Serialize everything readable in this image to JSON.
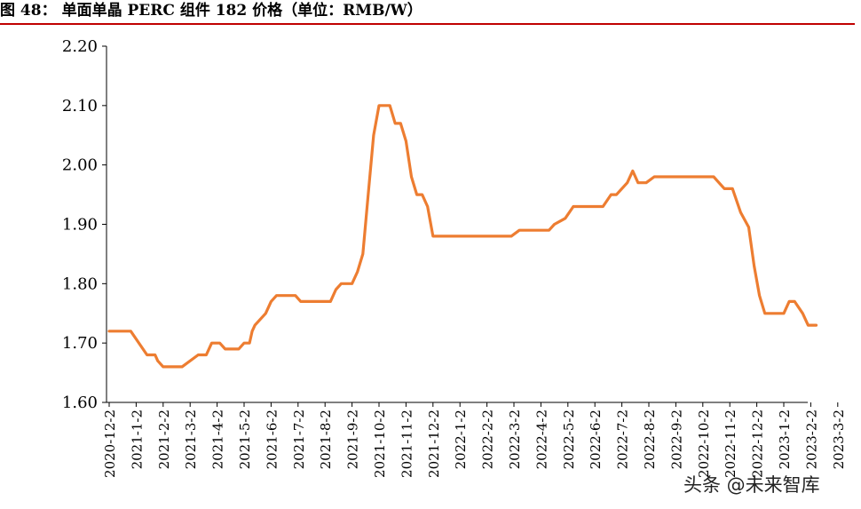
{
  "title": {
    "prefix": "图 48：",
    "text": "单面单晶 PERC 组件 182 价格（单位：RMB/W）"
  },
  "watermark": "头条 @未来智库",
  "colors": {
    "line": "#ED7D31",
    "axis": "#000000",
    "rule": "#c00000"
  },
  "chart_data": {
    "type": "line",
    "title": "单面单晶 PERC 组件 182 价格（单位：RMB/W）",
    "xlabel": "",
    "ylabel": "",
    "ylim": [
      1.6,
      2.2
    ],
    "yticks": [
      "1.60",
      "1.70",
      "1.80",
      "1.90",
      "2.00",
      "2.10",
      "2.20"
    ],
    "xticks": [
      "2020-12-2",
      "2021-1-2",
      "2021-2-2",
      "2021-3-2",
      "2021-4-2",
      "2021-5-2",
      "2021-6-2",
      "2021-7-2",
      "2021-8-2",
      "2021-9-2",
      "2021-10-2",
      "2021-11-2",
      "2021-12-2",
      "2022-1-2",
      "2022-2-2",
      "2022-3-2",
      "2022-4-2",
      "2022-5-2",
      "2022-6-2",
      "2022-7-2",
      "2022-8-2",
      "2022-9-2",
      "2022-10-2",
      "2022-11-2",
      "2022-12-2",
      "2023-1-2",
      "2023-2-2",
      "2023-3-2"
    ],
    "grid": false,
    "legend": "none",
    "series": [
      {
        "points": [
          [
            0,
            1.72
          ],
          [
            0.8,
            1.72
          ],
          [
            1.4,
            1.68
          ],
          [
            1.7,
            1.68
          ],
          [
            1.8,
            1.67
          ],
          [
            2.0,
            1.66
          ],
          [
            2.7,
            1.66
          ],
          [
            3.3,
            1.68
          ],
          [
            3.6,
            1.68
          ],
          [
            3.8,
            1.7
          ],
          [
            4.1,
            1.7
          ],
          [
            4.3,
            1.69
          ],
          [
            4.8,
            1.69
          ],
          [
            5.0,
            1.7
          ],
          [
            5.2,
            1.7
          ],
          [
            5.3,
            1.72
          ],
          [
            5.4,
            1.73
          ],
          [
            5.8,
            1.75
          ],
          [
            6.0,
            1.77
          ],
          [
            6.2,
            1.78
          ],
          [
            6.9,
            1.78
          ],
          [
            7.1,
            1.77
          ],
          [
            8.2,
            1.77
          ],
          [
            8.4,
            1.79
          ],
          [
            8.6,
            1.8
          ],
          [
            9.0,
            1.8
          ],
          [
            9.2,
            1.82
          ],
          [
            9.4,
            1.85
          ],
          [
            9.6,
            1.95
          ],
          [
            9.8,
            2.05
          ],
          [
            10.0,
            2.1
          ],
          [
            10.4,
            2.1
          ],
          [
            10.6,
            2.07
          ],
          [
            10.8,
            2.07
          ],
          [
            11.0,
            2.04
          ],
          [
            11.2,
            1.98
          ],
          [
            11.4,
            1.95
          ],
          [
            11.6,
            1.95
          ],
          [
            11.8,
            1.93
          ],
          [
            12.0,
            1.88
          ],
          [
            14.9,
            1.88
          ],
          [
            15.2,
            1.89
          ],
          [
            16.3,
            1.89
          ],
          [
            16.5,
            1.9
          ],
          [
            16.9,
            1.91
          ],
          [
            17.2,
            1.93
          ],
          [
            18.3,
            1.93
          ],
          [
            18.6,
            1.95
          ],
          [
            18.8,
            1.95
          ],
          [
            19.2,
            1.97
          ],
          [
            19.4,
            1.99
          ],
          [
            19.6,
            1.97
          ],
          [
            19.9,
            1.97
          ],
          [
            20.2,
            1.98
          ],
          [
            22.4,
            1.98
          ],
          [
            22.6,
            1.97
          ],
          [
            22.8,
            1.96
          ],
          [
            23.1,
            1.96
          ],
          [
            23.4,
            1.92
          ],
          [
            23.7,
            1.895
          ],
          [
            23.9,
            1.83
          ],
          [
            24.1,
            1.78
          ],
          [
            24.3,
            1.75
          ],
          [
            25.0,
            1.75
          ],
          [
            25.2,
            1.77
          ],
          [
            25.4,
            1.77
          ],
          [
            25.7,
            1.75
          ],
          [
            25.9,
            1.73
          ],
          [
            26.2,
            1.73
          ]
        ]
      }
    ]
  }
}
